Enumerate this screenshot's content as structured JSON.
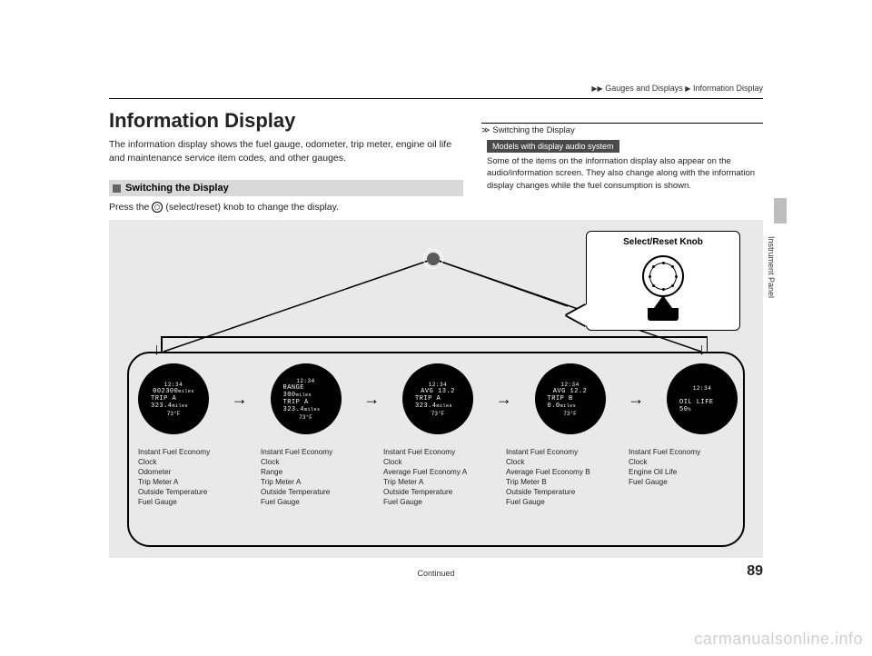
{
  "breadcrumb": {
    "sep": "▶▶",
    "a": "Gauges and Displays",
    "sep2": "▶",
    "b": "Information Display"
  },
  "title": "Information Display",
  "intro": "The information display shows the fuel gauge, odometer, trip meter, engine oil life and maintenance service item codes, and other gauges.",
  "section": {
    "label": "Switching the Display"
  },
  "press": {
    "pre": "Press the",
    "post": "(select/reset) knob to change the display."
  },
  "sidenote": {
    "hdr": "Switching the Display",
    "pill": "Models with display audio system",
    "body": "Some of the items on the information display also appear on the audio/information screen. They also change along with the information display changes while the fuel consumption is shown."
  },
  "callout": {
    "label": "Select/Reset Knob"
  },
  "gauges": [
    {
      "l1": "12:34",
      "l2": "002300",
      "l2s": "miles",
      "l3": "TRIP A  323.4",
      "l3s": "miles",
      "temp": "73°F"
    },
    {
      "l1": "12:34",
      "l2": "RANGE  300",
      "l2s": "miles",
      "l3": "TRIP A  323.4",
      "l3s": "miles",
      "temp": "73°F"
    },
    {
      "l1": "12:34",
      "l2": "AVG   13.2",
      "l2s": "",
      "l3": "TRIP A  323.4",
      "l3s": "miles",
      "temp": "73°F"
    },
    {
      "l1": "12:34",
      "l2": "AVG   12.2",
      "l2s": "",
      "l3": "TRIP B    0.0",
      "l3s": "miles",
      "temp": "73°F"
    },
    {
      "l1": "12:34",
      "l2": "",
      "l2s": "",
      "l3": "OIL LIFE   50",
      "l3s": "%",
      "temp": ""
    }
  ],
  "labels": [
    [
      "Instant Fuel Economy",
      "Clock",
      "Odometer",
      "Trip Meter A",
      "Outside Temperature",
      "Fuel Gauge"
    ],
    [
      "Instant Fuel Economy",
      "Clock",
      "Range",
      "Trip Meter A",
      "Outside Temperature",
      "Fuel Gauge"
    ],
    [
      "Instant Fuel Economy",
      "Clock",
      "Average Fuel Economy A",
      "Trip Meter A",
      "Outside Temperature",
      "Fuel Gauge"
    ],
    [
      "Instant Fuel Economy",
      "Clock",
      "Average Fuel Economy B",
      "Trip Meter B",
      "Outside Temperature",
      "Fuel Gauge"
    ],
    [
      "Instant Fuel Economy",
      "Clock",
      "Engine Oil Life",
      "Fuel Gauge"
    ]
  ],
  "continued": "Continued",
  "pagenum": "89",
  "sidelabel": "Instrument Panel",
  "watermark": "carmanualsonline.info",
  "colors": {
    "bg": "#e9e9e9",
    "bar": "#d9d9d9",
    "pill": "#4a4a4a"
  }
}
